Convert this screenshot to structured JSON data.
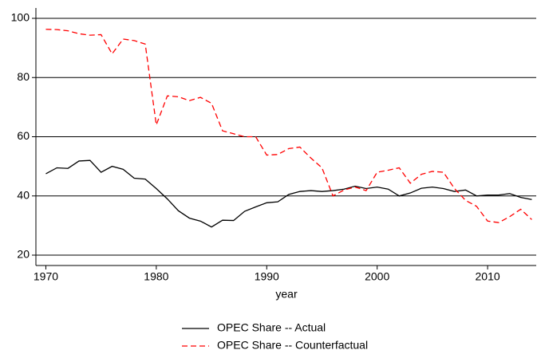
{
  "chart_data": {
    "type": "line",
    "x": [
      1970,
      1971,
      1972,
      1973,
      1974,
      1975,
      1976,
      1977,
      1978,
      1979,
      1980,
      1981,
      1982,
      1983,
      1984,
      1985,
      1986,
      1987,
      1988,
      1989,
      1990,
      1991,
      1992,
      1993,
      1994,
      1995,
      1996,
      1997,
      1998,
      1999,
      2000,
      2001,
      2002,
      2003,
      2004,
      2005,
      2006,
      2007,
      2008,
      2009,
      2010,
      2011,
      2012,
      2013,
      2014
    ],
    "series": [
      {
        "name": "OPEC Share -- Actual",
        "color": "#000000",
        "dash": false,
        "values": [
          47.5,
          49.5,
          49.3,
          51.8,
          52,
          48,
          50,
          49,
          46,
          45.7,
          42.5,
          39,
          35,
          32.5,
          31.5,
          29.5,
          31.8,
          31.7,
          34.8,
          36.3,
          37.7,
          38,
          40.5,
          41.5,
          41.8,
          41.5,
          41.8,
          42.3,
          43.3,
          42.5,
          43,
          42.3,
          40,
          41,
          42.6,
          43,
          42.5,
          41.5,
          42,
          40,
          40.3,
          40.3,
          40.8,
          39.5,
          38.8
        ]
      },
      {
        "name": "OPEC Share -- Counterfactual",
        "color": "#ff0000",
        "dash": true,
        "values": [
          96.3,
          96.2,
          95.8,
          94.8,
          94.3,
          94.5,
          88,
          93,
          92.5,
          91.3,
          64,
          73.8,
          73.5,
          72.2,
          73.3,
          71.3,
          62,
          61,
          60,
          60,
          53.8,
          54,
          56,
          56.5,
          52.8,
          49.5,
          40,
          42,
          43,
          41.8,
          48,
          48.7,
          49.5,
          44.3,
          47.3,
          48.3,
          48,
          42.5,
          38.5,
          36.5,
          31.5,
          31,
          33,
          35.5,
          32
        ]
      }
    ],
    "x_label": "year",
    "xlim": [
      1969.1,
      2014.4
    ],
    "xticks": [
      1970,
      1980,
      1990,
      2000,
      2010
    ],
    "ylim": [
      16.5,
      103.5
    ],
    "yticks": [
      20,
      40,
      60,
      80,
      100
    ],
    "grid": true,
    "legend": "bottom"
  }
}
